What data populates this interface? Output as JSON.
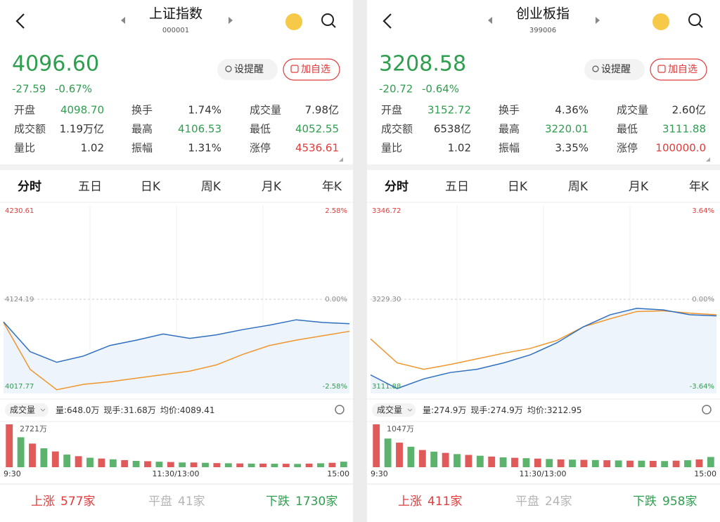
{
  "panels": [
    {
      "title": "上证指数",
      "code": "000001",
      "price": "4096.60",
      "change": "-27.59",
      "change_pct": "-0.67%",
      "buttons": [
        "设提醒",
        "加自选"
      ],
      "stats": [
        [
          {
            "label": "开盘",
            "value": "4098.70",
            "color": "#2e9e4f"
          },
          {
            "label": "换手",
            "value": "1.74%",
            "color": "#333333"
          },
          {
            "label": "成交量",
            "value": "7.98亿",
            "color": "#333333"
          }
        ],
        [
          {
            "label": "成交额",
            "value": "1.19万亿",
            "color": "#333333"
          },
          {
            "label": "最高",
            "value": "4106.53",
            "color": "#2e9e4f"
          },
          {
            "label": "最低",
            "value": "4052.55",
            "color": "#2e9e4f"
          }
        ],
        [
          {
            "label": "量比",
            "value": "1.02",
            "color": "#333333"
          },
          {
            "label": "振幅",
            "value": "1.31%",
            "color": "#333333"
          },
          {
            "label": "涨停",
            "value": "4536.61",
            "color": "#e03c3c"
          }
        ]
      ],
      "tabs": [
        "分时",
        "五日",
        "日K",
        "周K",
        "月K",
        "年K"
      ],
      "chart": {
        "ylim": [
          4017.77,
          4230.61
        ],
        "ylim_labels": [
          "4017.77",
          "4230.61"
        ],
        "mid_label": "4124.19",
        "pct_labels": [
          "2.58%",
          "0.00%",
          "-2.58%"
        ],
        "price": [
          4098.7,
          4065,
          4053,
          4060,
          4072,
          4078,
          4085,
          4080,
          4084,
          4090,
          4095,
          4101,
          4098,
          4096.6
        ],
        "avg": [
          4098,
          4045,
          4022,
          4028,
          4031,
          4035,
          4039,
          4043,
          4050,
          4062,
          4072,
          4078,
          4083,
          4088
        ]
      },
      "volume": {
        "title": "成交量",
        "info": [
          "量:648.0万",
          "现手:31.68万",
          "均价:4089.41"
        ],
        "max": 2721,
        "max_label": "2721万",
        "values": [
          2721,
          1900,
          1500,
          1200,
          1000,
          800,
          700,
          600,
          550,
          500,
          450,
          400,
          380,
          350,
          330,
          300,
          300,
          280,
          260,
          250,
          240,
          230,
          230,
          220,
          220,
          210,
          230,
          250,
          280,
          350
        ]
      },
      "times": [
        "9:30",
        "11:30/13:00",
        "15:00"
      ],
      "breadth": [
        {
          "label": "上涨",
          "count": "577家",
          "color": "#e03c3c"
        },
        {
          "label": "平盘",
          "count": "41家",
          "color": "#b5b5b5"
        },
        {
          "label": "下跌",
          "count": "1730家",
          "color": "#2e9e4f"
        }
      ]
    },
    {
      "title": "创业板指",
      "code": "399006",
      "price": "3208.58",
      "change": "-20.72",
      "change_pct": "-0.64%",
      "buttons": [
        "设提醒",
        "加自选"
      ],
      "stats": [
        [
          {
            "label": "开盘",
            "value": "3152.72",
            "color": "#2e9e4f"
          },
          {
            "label": "换手",
            "value": "4.36%",
            "color": "#333333"
          },
          {
            "label": "成交量",
            "value": "2.60亿",
            "color": "#333333"
          }
        ],
        [
          {
            "label": "成交额",
            "value": "6538亿",
            "color": "#333333"
          },
          {
            "label": "最高",
            "value": "3220.01",
            "color": "#2e9e4f"
          },
          {
            "label": "最低",
            "value": "3111.88",
            "color": "#2e9e4f"
          }
        ],
        [
          {
            "label": "量比",
            "value": "1.02",
            "color": "#333333"
          },
          {
            "label": "振幅",
            "value": "3.35%",
            "color": "#333333"
          },
          {
            "label": "涨停",
            "value": "100000.0",
            "color": "#e03c3c"
          }
        ]
      ],
      "tabs": [
        "分时",
        "五日",
        "日K",
        "周K",
        "月K",
        "年K"
      ],
      "chart": {
        "ylim": [
          3111.88,
          3346.72
        ],
        "ylim_labels": [
          "3111.88",
          "3346.72"
        ],
        "mid_label": "3229.30",
        "pct_labels": [
          "3.64%",
          "0.00%",
          "-3.64%"
        ],
        "price": [
          3135,
          3118,
          3130,
          3138,
          3142,
          3150,
          3160,
          3175,
          3195,
          3210,
          3218,
          3216,
          3210,
          3208.58
        ],
        "avg": [
          3180,
          3150,
          3142,
          3148,
          3155,
          3162,
          3168,
          3178,
          3195,
          3205,
          3214,
          3215,
          3212,
          3210
        ]
      },
      "volume": {
        "title": "成交量",
        "info": [
          "量:274.9万",
          "现手:274.9万",
          "均价:3212.95"
        ],
        "max": 1047,
        "max_label": "1047万",
        "values": [
          1047,
          700,
          600,
          500,
          420,
          380,
          350,
          320,
          300,
          280,
          260,
          240,
          230,
          220,
          210,
          200,
          190,
          185,
          180,
          175,
          170,
          165,
          160,
          160,
          155,
          150,
          160,
          170,
          190,
          250
        ]
      },
      "times": [
        "9:30",
        "11:30/13:00",
        "15:00"
      ],
      "breadth": [
        {
          "label": "上涨",
          "count": "411家",
          "color": "#e03c3c"
        },
        {
          "label": "平盘",
          "count": "24家",
          "color": "#b5b5b5"
        },
        {
          "label": "下跌",
          "count": "958家",
          "color": "#2e9e4f"
        }
      ]
    }
  ]
}
